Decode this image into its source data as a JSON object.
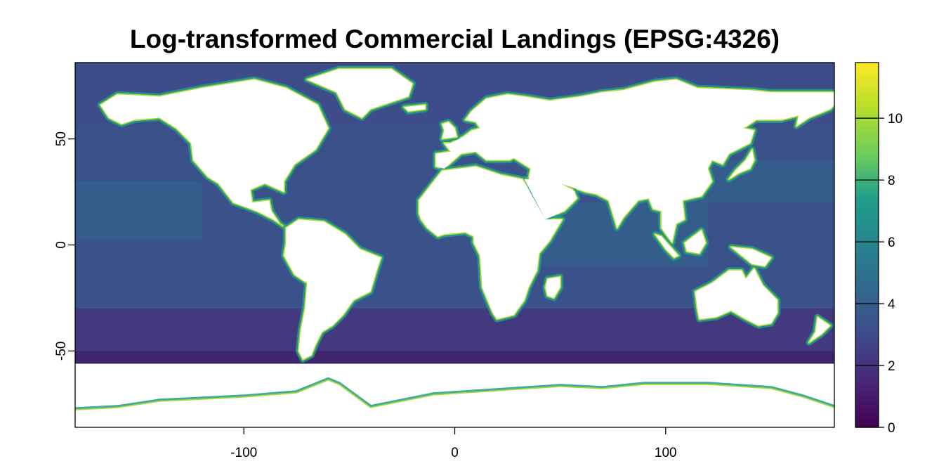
{
  "title": "Log-transformed Commercial Landings (EPSG:4326)",
  "colors": {
    "land": "#ffffff",
    "frame": "#000000",
    "scale": [
      "#440154",
      "#482777",
      "#3f4a8a",
      "#31688e",
      "#26838f",
      "#1f9d8a",
      "#6cce5a",
      "#b6de2b",
      "#fee825"
    ]
  },
  "chart_data": {
    "type": "heatmap",
    "title": "Log-transformed Commercial Landings (EPSG:4326)",
    "xlabel": "",
    "ylabel": "",
    "xlim": [
      -180,
      180
    ],
    "ylim": [
      -86,
      86
    ],
    "x_ticks": [
      -100,
      0,
      100
    ],
    "y_ticks": [
      -50,
      0,
      50
    ],
    "legend": {
      "position": "right",
      "min": 0,
      "max": 11.8,
      "ticks": [
        0,
        2,
        4,
        6,
        8,
        10
      ],
      "palette": "viridis"
    },
    "grid": false
  }
}
